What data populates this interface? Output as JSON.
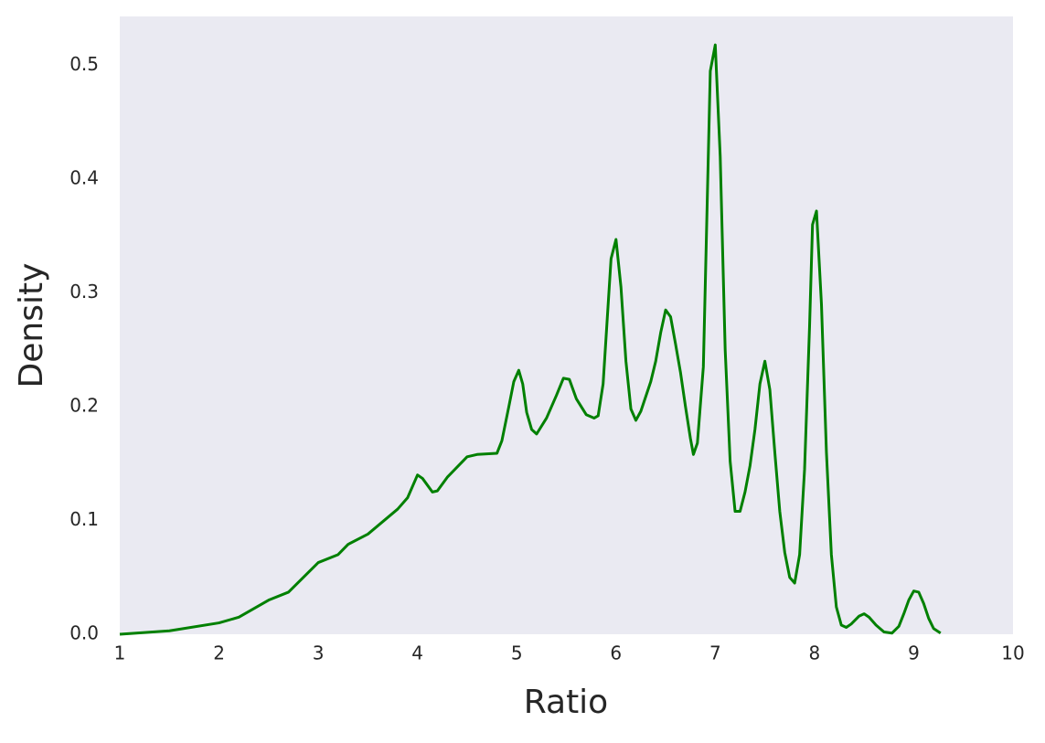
{
  "chart_data": {
    "type": "line",
    "xlabel": "Ratio",
    "ylabel": "Density",
    "xlim": [
      1,
      10
    ],
    "ylim": [
      0,
      0.543
    ],
    "xticks": [
      1,
      2,
      3,
      4,
      5,
      6,
      7,
      8,
      9,
      10
    ],
    "yticks": [
      {
        "value": 0,
        "label": "0.0"
      },
      0.1,
      0.2,
      0.3,
      0.4,
      0.5
    ],
    "grid": false,
    "background": "#eaeaf2",
    "series": [
      {
        "color": "#008000",
        "x": [
          1.0,
          1.5,
          2.0,
          2.2,
          2.5,
          2.7,
          3.0,
          3.2,
          3.3,
          3.5,
          3.8,
          3.9,
          4.0,
          4.05,
          4.15,
          4.2,
          4.3,
          4.5,
          4.6,
          4.8,
          4.85,
          4.92,
          4.97,
          5.02,
          5.06,
          5.1,
          5.15,
          5.2,
          5.3,
          5.4,
          5.47,
          5.53,
          5.6,
          5.7,
          5.78,
          5.82,
          5.87,
          5.95,
          6.0,
          6.05,
          6.1,
          6.15,
          6.2,
          6.25,
          6.35,
          6.4,
          6.45,
          6.5,
          6.55,
          6.6,
          6.65,
          6.7,
          6.75,
          6.78,
          6.82,
          6.88,
          6.95,
          7.0,
          7.05,
          7.1,
          7.15,
          7.2,
          7.25,
          7.3,
          7.35,
          7.4,
          7.45,
          7.5,
          7.55,
          7.6,
          7.65,
          7.7,
          7.75,
          7.8,
          7.85,
          7.9,
          7.95,
          7.98,
          8.02,
          8.07,
          8.12,
          8.17,
          8.22,
          8.27,
          8.32,
          8.37,
          8.45,
          8.5,
          8.55,
          8.62,
          8.7,
          8.78,
          8.85,
          8.9,
          8.95,
          9.0,
          9.05,
          9.1,
          9.15,
          9.2,
          9.27
        ],
        "values": [
          0,
          0.003,
          0.01,
          0.015,
          0.03,
          0.037,
          0.063,
          0.07,
          0.079,
          0.088,
          0.11,
          0.12,
          0.14,
          0.137,
          0.125,
          0.126,
          0.138,
          0.156,
          0.158,
          0.159,
          0.17,
          0.2,
          0.222,
          0.232,
          0.22,
          0.195,
          0.18,
          0.176,
          0.19,
          0.21,
          0.225,
          0.224,
          0.207,
          0.193,
          0.19,
          0.192,
          0.22,
          0.33,
          0.347,
          0.305,
          0.24,
          0.198,
          0.188,
          0.196,
          0.222,
          0.24,
          0.265,
          0.285,
          0.279,
          0.255,
          0.23,
          0.2,
          0.172,
          0.158,
          0.168,
          0.235,
          0.495,
          0.518,
          0.42,
          0.25,
          0.152,
          0.108,
          0.108,
          0.125,
          0.148,
          0.18,
          0.22,
          0.24,
          0.215,
          0.16,
          0.108,
          0.072,
          0.05,
          0.045,
          0.07,
          0.145,
          0.27,
          0.36,
          0.372,
          0.29,
          0.16,
          0.07,
          0.024,
          0.008,
          0.006,
          0.009,
          0.016,
          0.018,
          0.015,
          0.008,
          0.002,
          0.001,
          0.007,
          0.018,
          0.03,
          0.038,
          0.037,
          0.027,
          0.014,
          0.005,
          0.001
        ]
      }
    ]
  }
}
